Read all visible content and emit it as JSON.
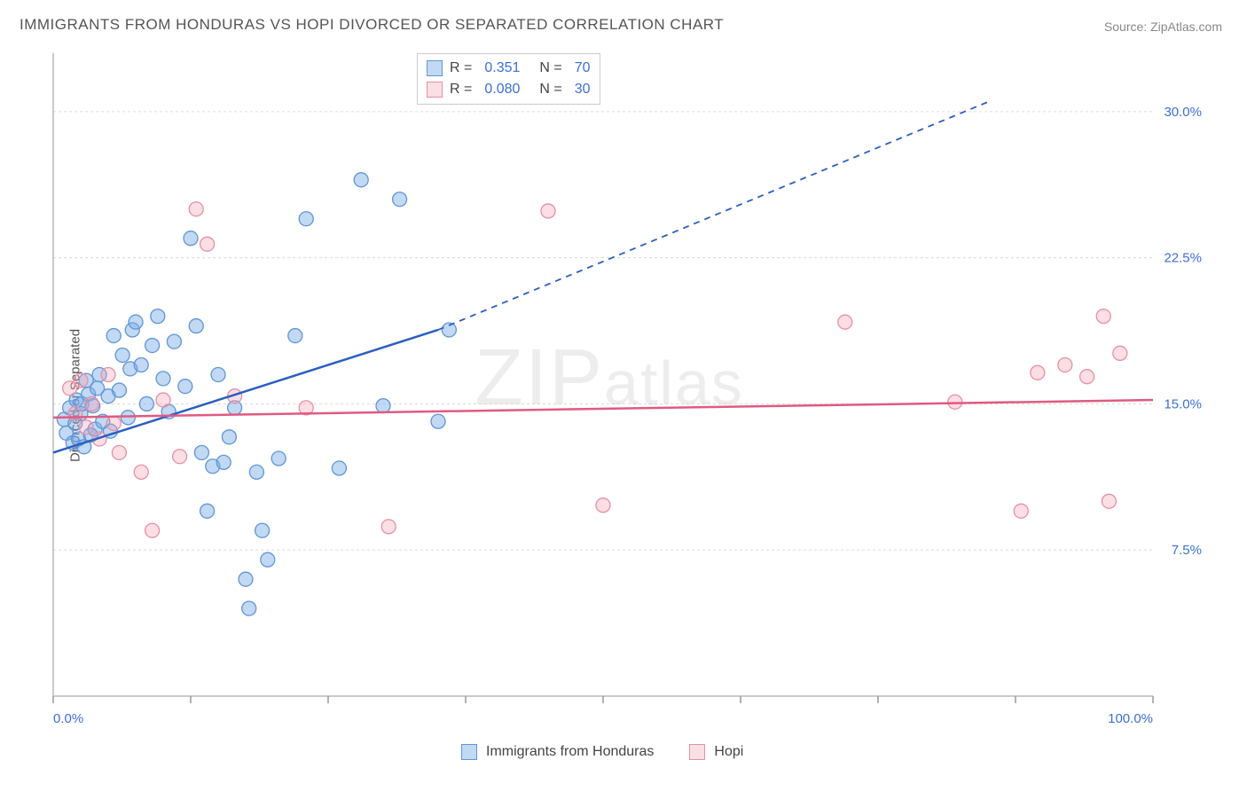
{
  "title": "IMMIGRANTS FROM HONDURAS VS HOPI DIVORCED OR SEPARATED CORRELATION CHART",
  "source_label": "Source: ",
  "source_value": "ZipAtlas.com",
  "watermark": "ZIPatlas",
  "ylabel": "Divorced or Separated",
  "chart": {
    "type": "scatter",
    "background_color": "#ffffff",
    "grid_color": "#dcdcdc",
    "axis_color": "#b8b8b8",
    "tick_color": "#999999",
    "xlim": [
      0,
      100
    ],
    "ylim": [
      0,
      33
    ],
    "yticks": [
      7.5,
      15.0,
      22.5,
      30.0
    ],
    "ytick_labels": [
      "7.5%",
      "15.0%",
      "22.5%",
      "30.0%"
    ],
    "xtick_positions": [
      0,
      12.5,
      25,
      37.5,
      50,
      62.5,
      75,
      87.5,
      100
    ],
    "xtick_labels_shown": {
      "0": "0.0%",
      "100": "100.0%"
    },
    "series": [
      {
        "name": "Immigrants from Honduras",
        "color_fill": "rgba(120,170,230,0.45)",
        "color_stroke": "#5f95d6",
        "marker_radius": 8,
        "R": "0.351",
        "N": "70",
        "trend": {
          "x1": 0,
          "y1": 12.5,
          "x2": 35,
          "y2": 18.8,
          "x_dash_to": 85,
          "y_dash_to": 30.5,
          "color": "#2b5fc0",
          "width": 2.5
        },
        "points": [
          [
            1.0,
            14.2
          ],
          [
            1.2,
            13.5
          ],
          [
            1.5,
            14.8
          ],
          [
            1.8,
            13.0
          ],
          [
            2.0,
            14.0
          ],
          [
            2.1,
            15.2
          ],
          [
            2.3,
            13.2
          ],
          [
            2.5,
            14.5
          ],
          [
            2.6,
            15.0
          ],
          [
            2.8,
            12.8
          ],
          [
            3.0,
            16.2
          ],
          [
            3.2,
            15.5
          ],
          [
            3.4,
            13.4
          ],
          [
            3.6,
            14.9
          ],
          [
            3.8,
            13.7
          ],
          [
            4.0,
            15.8
          ],
          [
            4.2,
            16.5
          ],
          [
            4.5,
            14.1
          ],
          [
            5.0,
            15.4
          ],
          [
            5.2,
            13.6
          ],
          [
            5.5,
            18.5
          ],
          [
            6.0,
            15.7
          ],
          [
            6.3,
            17.5
          ],
          [
            6.8,
            14.3
          ],
          [
            7.0,
            16.8
          ],
          [
            7.2,
            18.8
          ],
          [
            7.5,
            19.2
          ],
          [
            8.0,
            17.0
          ],
          [
            8.5,
            15.0
          ],
          [
            9.0,
            18.0
          ],
          [
            9.5,
            19.5
          ],
          [
            10.0,
            16.3
          ],
          [
            10.5,
            14.6
          ],
          [
            11.0,
            18.2
          ],
          [
            12.0,
            15.9
          ],
          [
            12.5,
            23.5
          ],
          [
            13.0,
            19.0
          ],
          [
            13.5,
            12.5
          ],
          [
            14.0,
            9.5
          ],
          [
            14.5,
            11.8
          ],
          [
            15.0,
            16.5
          ],
          [
            15.5,
            12.0
          ],
          [
            16.0,
            13.3
          ],
          [
            16.5,
            14.8
          ],
          [
            17.5,
            6.0
          ],
          [
            17.8,
            4.5
          ],
          [
            18.5,
            11.5
          ],
          [
            19.0,
            8.5
          ],
          [
            19.5,
            7.0
          ],
          [
            20.5,
            12.2
          ],
          [
            22.0,
            18.5
          ],
          [
            23.0,
            24.5
          ],
          [
            26.0,
            11.7
          ],
          [
            28.0,
            26.5
          ],
          [
            30.0,
            14.9
          ],
          [
            31.5,
            25.5
          ],
          [
            35.0,
            14.1
          ],
          [
            36.0,
            18.8
          ]
        ]
      },
      {
        "name": "Hopi",
        "color_fill": "rgba(245,160,180,0.35)",
        "color_stroke": "#e78fa5",
        "marker_radius": 8,
        "R": "0.080",
        "N": "30",
        "trend": {
          "x1": 0,
          "y1": 14.3,
          "x2": 100,
          "y2": 15.2,
          "color": "#e05a82",
          "width": 2.5
        },
        "points": [
          [
            1.5,
            15.8
          ],
          [
            2.0,
            14.5
          ],
          [
            2.5,
            16.2
          ],
          [
            3.0,
            13.8
          ],
          [
            3.5,
            15.0
          ],
          [
            4.2,
            13.2
          ],
          [
            5.0,
            16.5
          ],
          [
            5.5,
            14.0
          ],
          [
            6.0,
            12.5
          ],
          [
            8.0,
            11.5
          ],
          [
            9.0,
            8.5
          ],
          [
            10.0,
            15.2
          ],
          [
            11.5,
            12.3
          ],
          [
            13.0,
            25.0
          ],
          [
            14.0,
            23.2
          ],
          [
            16.5,
            15.4
          ],
          [
            23.0,
            14.8
          ],
          [
            30.5,
            8.7
          ],
          [
            45.0,
            24.9
          ],
          [
            50.0,
            9.8
          ],
          [
            72.0,
            19.2
          ],
          [
            82.0,
            15.1
          ],
          [
            88.0,
            9.5
          ],
          [
            89.5,
            16.6
          ],
          [
            92.0,
            17.0
          ],
          [
            94.0,
            16.4
          ],
          [
            95.5,
            19.5
          ],
          [
            96.0,
            10.0
          ],
          [
            97.0,
            17.6
          ]
        ]
      }
    ]
  },
  "legend_top": {
    "rows": [
      {
        "swatch": "blue",
        "r_label": "R =",
        "r_value": "0.351",
        "n_label": "N =",
        "n_value": "70"
      },
      {
        "swatch": "pink",
        "r_label": "R =",
        "r_value": "0.080",
        "n_label": "N =",
        "n_value": "30"
      }
    ]
  },
  "legend_bottom": [
    {
      "swatch": "blue",
      "label": "Immigrants from Honduras"
    },
    {
      "swatch": "pink",
      "label": "Hopi"
    }
  ]
}
